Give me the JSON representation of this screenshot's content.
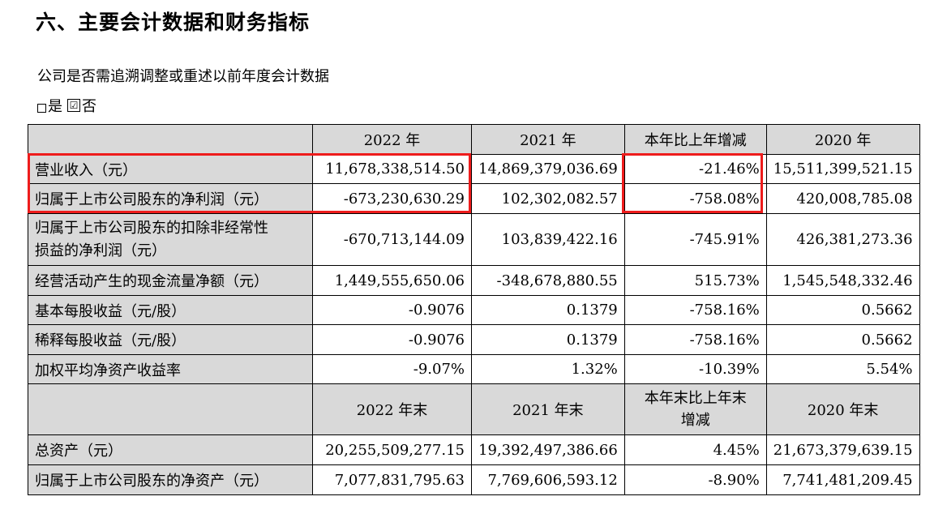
{
  "heading": "六、主要会计数据和财务指标",
  "question": "公司是否需追溯调整或重述以前年度会计数据",
  "answer": {
    "yes_label": "是",
    "no_label": "否",
    "checkmark": "☑",
    "selected": "否"
  },
  "table": {
    "header1": [
      "2022 年",
      "2021 年",
      "本年比上年增减",
      "2020 年"
    ],
    "rows1": [
      {
        "label": "营业收入（元）",
        "values": [
          "11,678,338,514.50",
          "14,869,379,036.69",
          "-21.46%",
          "15,511,399,521.15"
        ]
      },
      {
        "label": "归属于上市公司股东的净利润（元）",
        "values": [
          "-673,230,630.29",
          "102,302,082.57",
          "-758.08%",
          "420,008,785.08"
        ]
      },
      {
        "label_line1": "归属于上市公司股东的扣除非经常性",
        "label_line2": "损益的净利润（元）",
        "values": [
          "-670,713,144.09",
          "103,839,422.16",
          "-745.91%",
          "426,381,273.36"
        ]
      },
      {
        "label": "经营活动产生的现金流量净额（元）",
        "values": [
          "1,449,555,650.06",
          "-348,678,880.55",
          "515.73%",
          "1,545,548,332.46"
        ]
      },
      {
        "label": "基本每股收益（元/股）",
        "values": [
          "-0.9076",
          "0.1379",
          "-758.16%",
          "0.5662"
        ]
      },
      {
        "label": "稀释每股收益（元/股）",
        "values": [
          "-0.9076",
          "0.1379",
          "-758.16%",
          "0.5662"
        ]
      },
      {
        "label": "加权平均净资产收益率",
        "values": [
          "-9.07%",
          "1.32%",
          "-10.39%",
          "5.54%"
        ]
      }
    ],
    "header2": {
      "col1": "2022 年末",
      "col2": "2021 年末",
      "col3_line1": "本年末比上年末",
      "col3_line2": "增减",
      "col4": "2020 年末"
    },
    "rows2": [
      {
        "label": "总资产（元）",
        "values": [
          "20,255,509,277.15",
          "19,392,497,386.66",
          "4.45%",
          "21,673,379,639.15"
        ]
      },
      {
        "label": "归属于上市公司股东的净资产（元）",
        "values": [
          "7,077,831,795.63",
          "7,769,606,593.12",
          "-8.90%",
          "7,741,481,209.45"
        ]
      }
    ]
  },
  "highlight_color": "#ee1c1c",
  "shade_color": "#d9d9d9"
}
